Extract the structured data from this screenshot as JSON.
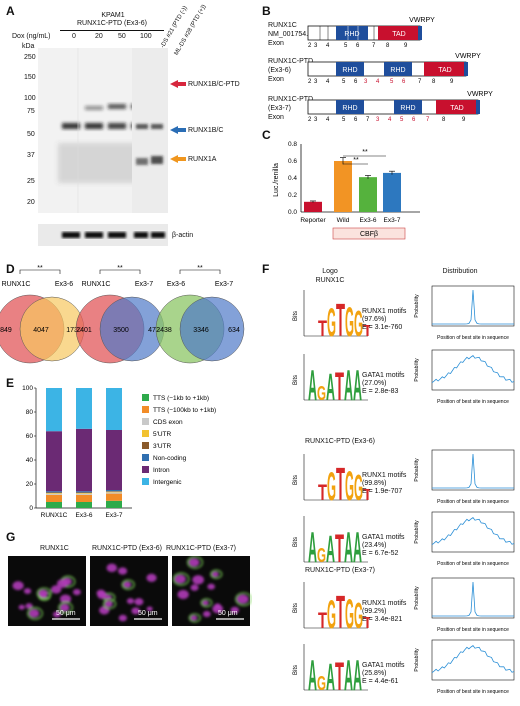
{
  "panels": {
    "A": {
      "letter": "A",
      "cell_line": "KPAM1",
      "construct": "RUNX1C-PTD (Ex3-6)",
      "dox_label": "Dox (ng/mL)",
      "dox_values": [
        "0",
        "20",
        "50",
        "100"
      ],
      "lane_ml1": "ML-DS #21 (PTD (-))",
      "lane_ml2": "ML-DS #28 (PTD (+))",
      "kda": "kDa",
      "markers": [
        "250",
        "150",
        "100",
        "75",
        "50",
        "37",
        "25",
        "20"
      ],
      "bands": [
        {
          "label": "RUNX1B/C-PTD",
          "color": "#d7263d"
        },
        {
          "label": "RUNX1B/C",
          "color": "#2a6db5"
        },
        {
          "label": "RUNX1A",
          "color": "#f0961e"
        }
      ],
      "loading_control": "β-actin"
    },
    "B": {
      "letter": "B",
      "constructs": [
        {
          "name": "RUNX1C",
          "sub": "NM_001754.4",
          "exons": [
            "2",
            "3",
            "4",
            "5",
            "6",
            "7",
            "8",
            "9"
          ]
        },
        {
          "name": "RUNX1C-PTD",
          "sub": "(Ex3-6)",
          "exons": [
            "2",
            "3",
            "4",
            "5",
            "6",
            "3",
            "4",
            "5",
            "6",
            "7",
            "8",
            "9"
          ]
        },
        {
          "name": "RUNX1C-PTD",
          "sub": "(Ex3-7)",
          "exons": [
            "2",
            "3",
            "4",
            "5",
            "6",
            "7",
            "3",
            "4",
            "5",
            "6",
            "7",
            "8",
            "9"
          ]
        }
      ],
      "exon_label": "Exon",
      "rhd": "RHD",
      "tad": "TAD",
      "vwrpy": "VWRPY"
    },
    "C": {
      "letter": "C",
      "sig": "**",
      "cbfb_label": "CBFβ",
      "colors": [
        "#c8102e",
        "#f29424",
        "#55b23d",
        "#2d78bf"
      ]
    },
    "D": {
      "letter": "D",
      "sig": "**",
      "venns": [
        {
          "left": "RUNX1C",
          "right": "Ex3-6",
          "a": "1849",
          "ab": "4047",
          "b": "1730",
          "ca": "#e15759",
          "cb": "#f6c85f"
        },
        {
          "left": "RUNX1C",
          "right": "Ex3-7",
          "a": "2401",
          "ab": "3500",
          "b": "473",
          "ca": "#e15759",
          "cb": "#4e79c7"
        },
        {
          "left": "Ex3-6",
          "right": "Ex3-7",
          "a": "2438",
          "ab": "3346",
          "b": "634",
          "ca": "#8cc665",
          "cb": "#4e79c7"
        }
      ]
    },
    "E": {
      "letter": "E",
      "legend": [
        {
          "label": "TTS (−1kb to +1kb)",
          "color": "#2eaa4b"
        },
        {
          "label": "TTS (−100kb to +1kb)",
          "color": "#f28c28"
        },
        {
          "label": "CDS exon",
          "color": "#c9c9c9"
        },
        {
          "label": "5′UTR",
          "color": "#f2c230"
        },
        {
          "label": "3′UTR",
          "color": "#8a5a2b"
        },
        {
          "label": "Non-coding",
          "color": "#2f6fb0"
        },
        {
          "label": "Intron",
          "color": "#6b2a74"
        },
        {
          "label": "Intergenic",
          "color": "#3cb4e5"
        }
      ]
    },
    "F": {
      "letter": "F",
      "logo_header": "Logo",
      "logo_sub": "RUNX1C",
      "dist_header": "Distribution",
      "group2": "RUNX1C-PTD (Ex3-6)",
      "group3": "RUNX1C-PTD (Ex3-7)",
      "motifs": [
        {
          "name": "RUNX1 motifs",
          "pct": "(97.6%)",
          "e": "E = 3.1e-760",
          "logo": "TGTGGT"
        },
        {
          "name": "GATA1 motifs",
          "pct": "(27.0%)",
          "e": "E = 2.8e-83",
          "logo": "AGATAA"
        },
        {
          "name": "RUNX1 motifs",
          "pct": "(99.8%)",
          "e": "E = 1.9e-707",
          "logo": "TGTGGT"
        },
        {
          "name": "GATA1 motifs",
          "pct": "(23.4%)",
          "e": "E = 6.7e-52",
          "logo": "AGATAA"
        },
        {
          "name": "RUNX1 motifs",
          "pct": "(99.2%)",
          "e": "E = 3.4e-821",
          "logo": "TGTGGT"
        },
        {
          "name": "GATA1 motifs",
          "pct": "(25.8%)",
          "e": "E = 4.4e-61",
          "logo": "AGATAA"
        }
      ],
      "bits": "Bits",
      "prob": "Probability",
      "xlabel": "Position of best site in sequence"
    },
    "G": {
      "letter": "G",
      "labels": [
        "RUNX1C",
        "RUNX1C-PTD (Ex3-6)",
        "RUNX1C-PTD (Ex3-7)"
      ],
      "scale": "50 μm"
    }
  },
  "chart_data": [
    {
      "type": "bar",
      "panel": "C",
      "categories": [
        "Reporter",
        "Wild",
        "Ex3-6",
        "Ex3-7"
      ],
      "values": [
        0.12,
        0.6,
        0.41,
        0.46
      ],
      "errors": [
        0.01,
        0.04,
        0.02,
        0.02
      ],
      "ylabel": "Luc./renilla",
      "ylim": [
        0,
        0.8
      ],
      "yticks": [
        "0.0",
        "0.2",
        "0.4",
        "0.6",
        "0.8"
      ]
    },
    {
      "type": "bar",
      "panel": "E",
      "stacked": true,
      "categories": [
        "RUNX1C",
        "Ex3-6",
        "Ex3-7"
      ],
      "ylim": [
        0,
        100
      ],
      "yticks": [
        "0",
        "20",
        "40",
        "60",
        "80",
        "100"
      ],
      "series": [
        {
          "name": "TTS (−1kb to +1kb)",
          "values": [
            5,
            5,
            6
          ]
        },
        {
          "name": "TTS (−100kb to +1kb)",
          "values": [
            6,
            6,
            6
          ]
        },
        {
          "name": "CDS exon",
          "values": [
            1,
            1,
            1
          ]
        },
        {
          "name": "5′UTR",
          "values": [
            0.5,
            0.5,
            0.5
          ]
        },
        {
          "name": "3′UTR",
          "values": [
            0.5,
            0.5,
            0.5
          ]
        },
        {
          "name": "Non-coding",
          "values": [
            1,
            1,
            1
          ]
        },
        {
          "name": "Intron",
          "values": [
            50,
            52,
            50
          ]
        },
        {
          "name": "Intergenic",
          "values": [
            36,
            34,
            35
          ]
        }
      ]
    }
  ]
}
